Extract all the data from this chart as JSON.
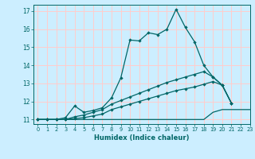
{
  "title": "",
  "xlabel": "Humidex (Indice chaleur)",
  "bg_color": "#cceeff",
  "grid_color": "#ffcccc",
  "line_color": "#006666",
  "xlim": [
    -0.5,
    23
  ],
  "ylim": [
    10.75,
    17.35
  ],
  "xticks": [
    0,
    1,
    2,
    3,
    4,
    5,
    6,
    7,
    8,
    9,
    10,
    11,
    12,
    13,
    14,
    15,
    16,
    17,
    18,
    19,
    20,
    21,
    22,
    23
  ],
  "yticks": [
    11,
    12,
    13,
    14,
    15,
    16,
    17
  ],
  "lines": [
    {
      "x": [
        0,
        1,
        2,
        3,
        4,
        5,
        6,
        7,
        8,
        9,
        10,
        11,
        12,
        13,
        14,
        15,
        16,
        17,
        18,
        19,
        20,
        21
      ],
      "y": [
        11.0,
        11.0,
        11.0,
        11.1,
        11.75,
        11.4,
        11.5,
        11.65,
        12.2,
        13.3,
        15.4,
        15.35,
        15.8,
        15.7,
        16.0,
        17.1,
        16.1,
        15.3,
        14.0,
        13.35,
        12.9,
        11.9
      ],
      "marker": true
    },
    {
      "x": [
        0,
        1,
        2,
        3,
        4,
        5,
        6,
        7,
        8,
        9,
        10,
        11,
        12,
        13,
        14,
        15,
        16,
        17,
        18,
        19,
        20,
        21
      ],
      "y": [
        11.0,
        11.0,
        11.0,
        11.0,
        11.15,
        11.25,
        11.4,
        11.55,
        11.85,
        12.05,
        12.25,
        12.45,
        12.65,
        12.85,
        13.05,
        13.2,
        13.35,
        13.5,
        13.65,
        13.35,
        12.9,
        11.9
      ],
      "marker": true
    },
    {
      "x": [
        0,
        1,
        2,
        3,
        4,
        5,
        6,
        7,
        8,
        9,
        10,
        11,
        12,
        13,
        14,
        15,
        16,
        17,
        18,
        19,
        20,
        21
      ],
      "y": [
        11.0,
        11.0,
        11.0,
        11.0,
        11.05,
        11.1,
        11.2,
        11.3,
        11.55,
        11.7,
        11.85,
        12.0,
        12.15,
        12.3,
        12.45,
        12.6,
        12.7,
        12.8,
        12.95,
        13.1,
        12.9,
        11.9
      ],
      "marker": true
    },
    {
      "x": [
        0,
        1,
        2,
        3,
        4,
        5,
        6,
        7,
        8,
        9,
        10,
        11,
        12,
        13,
        14,
        15,
        16,
        17,
        18,
        19,
        20,
        21,
        22,
        23
      ],
      "y": [
        11.0,
        11.0,
        11.0,
        11.0,
        11.0,
        11.0,
        11.0,
        11.0,
        11.0,
        11.0,
        11.0,
        11.0,
        11.0,
        11.0,
        11.0,
        11.0,
        11.0,
        11.0,
        11.0,
        11.4,
        11.55,
        11.55,
        11.55,
        11.55
      ],
      "marker": false
    }
  ]
}
